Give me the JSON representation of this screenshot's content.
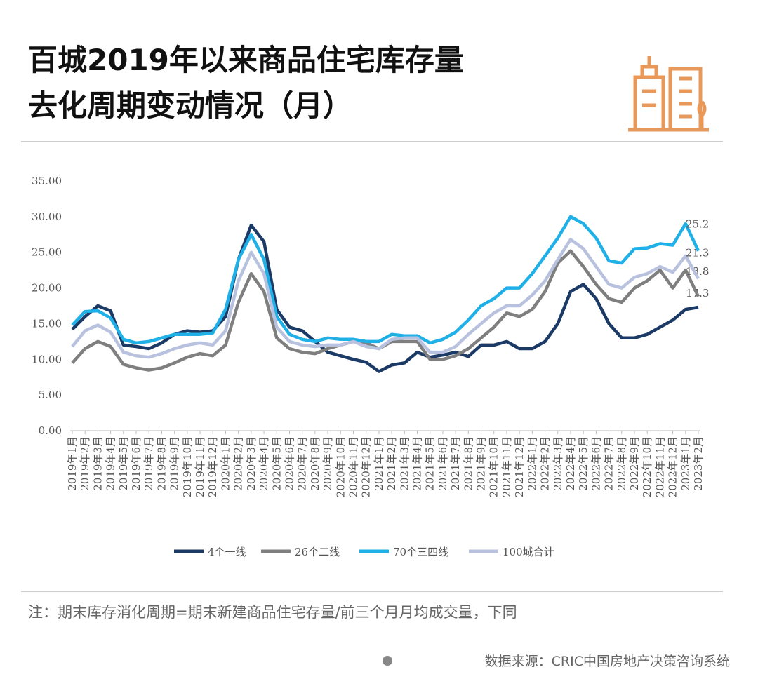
{
  "chart_data": {
    "type": "line",
    "title": [
      "百城2019年以来商品住宅库存量",
      "去化周期变动情况（月）"
    ],
    "categories": [
      "2019年1月",
      "2019年2月",
      "2019年3月",
      "2019年4月",
      "2019年5月",
      "2019年6月",
      "2019年7月",
      "2019年8月",
      "2019年9月",
      "2019年10月",
      "2019年11月",
      "2019年12月",
      "2020年1月",
      "2020年2月",
      "2020年3月",
      "2020年4月",
      "2020年5月",
      "2020年6月",
      "2020年7月",
      "2020年8月",
      "2020年9月",
      "2020年10月",
      "2020年11月",
      "2020年12月",
      "2021年1月",
      "2021年2月",
      "2021年3月",
      "2021年4月",
      "2021年5月",
      "2021年6月",
      "2021年7月",
      "2021年8月",
      "2021年9月",
      "2021年10月",
      "2021年11月",
      "2021年12月",
      "2022年1月",
      "2022年2月",
      "2022年3月",
      "2022年4月",
      "2022年5月",
      "2022年6月",
      "2022年7月",
      "2022年8月",
      "2022年9月",
      "2022年10月",
      "2022年11月",
      "2022年12月",
      "2023年1月",
      "2023年2月"
    ],
    "series": [
      {
        "name": "4个一线",
        "color": "#1b3a66",
        "values": [
          14.2,
          16.0,
          17.5,
          16.8,
          12.0,
          11.8,
          11.5,
          12.3,
          13.5,
          14.0,
          13.8,
          14.0,
          16.0,
          24.0,
          28.8,
          26.5,
          17.0,
          14.5,
          14.0,
          12.5,
          11.0,
          10.5,
          10.0,
          9.6,
          8.3,
          9.2,
          9.5,
          11.0,
          10.3,
          10.6,
          11.0,
          10.4,
          12.0,
          12.0,
          12.5,
          11.5,
          11.5,
          12.5,
          15.0,
          19.5,
          20.5,
          18.5,
          15.0,
          13.0,
          13.0,
          13.5,
          14.5,
          15.5,
          17.0,
          17.3
        ]
      },
      {
        "name": "26个二线",
        "color": "#7f7f7f",
        "values": [
          9.5,
          11.5,
          12.5,
          11.8,
          9.3,
          8.8,
          8.5,
          8.8,
          9.5,
          10.3,
          10.8,
          10.5,
          12.0,
          18.0,
          22.0,
          19.5,
          13.0,
          11.5,
          11.0,
          10.8,
          11.5,
          12.0,
          12.5,
          12.3,
          11.5,
          12.5,
          12.5,
          12.5,
          10.0,
          10.0,
          10.5,
          11.5,
          13.0,
          14.5,
          16.5,
          16.0,
          17.0,
          19.5,
          23.5,
          25.2,
          23.0,
          20.5,
          18.5,
          18.0,
          20.0,
          21.0,
          22.5,
          20.0,
          22.5,
          18.8
        ]
      },
      {
        "name": "70个三四线",
        "color": "#1fb0e8",
        "values": [
          14.8,
          16.7,
          16.8,
          15.8,
          12.8,
          12.3,
          12.5,
          13.0,
          13.5,
          13.5,
          13.5,
          13.7,
          17.0,
          24.0,
          27.5,
          24.0,
          16.0,
          13.5,
          12.8,
          12.5,
          13.0,
          12.8,
          12.8,
          12.5,
          12.5,
          13.5,
          13.3,
          13.3,
          12.3,
          12.8,
          13.8,
          15.5,
          17.5,
          18.5,
          20.0,
          20.0,
          22.0,
          24.5,
          27.0,
          30.0,
          29.0,
          27.0,
          23.8,
          23.5,
          25.5,
          25.6,
          26.2,
          26.0,
          29.0,
          25.2
        ]
      },
      {
        "name": "100城合计",
        "color": "#b8c2de",
        "values": [
          11.8,
          14.0,
          14.8,
          13.8,
          11.0,
          10.5,
          10.3,
          10.8,
          11.5,
          12.0,
          12.3,
          12.0,
          14.0,
          21.0,
          25.0,
          22.0,
          14.5,
          12.5,
          12.0,
          11.8,
          12.0,
          12.0,
          12.5,
          11.8,
          11.5,
          12.8,
          13.0,
          13.0,
          11.0,
          11.0,
          11.8,
          13.5,
          15.0,
          16.5,
          17.5,
          17.5,
          19.0,
          21.0,
          24.0,
          26.8,
          25.5,
          23.0,
          20.5,
          20.0,
          21.5,
          22.0,
          23.0,
          22.2,
          24.5,
          21.3
        ]
      }
    ],
    "ylim": [
      0,
      35
    ],
    "yticks": [
      {
        "value": 0,
        "label": "0.00"
      },
      {
        "value": 5,
        "label": "5.00"
      },
      {
        "value": 10,
        "label": "10.00"
      },
      {
        "value": 15,
        "label": "15.00"
      },
      {
        "value": 20,
        "label": "20.00"
      },
      {
        "value": 25,
        "label": "25.00"
      },
      {
        "value": 30,
        "label": "30.00"
      },
      {
        "value": 35,
        "label": "35.00"
      }
    ],
    "legend": "bottom",
    "note": "注：期末库存消化周期=期末新建商品住宅存量/前三个月月均成交量，下同",
    "source": "数据来源：CRIC中国房地产决策咨询系统"
  }
}
